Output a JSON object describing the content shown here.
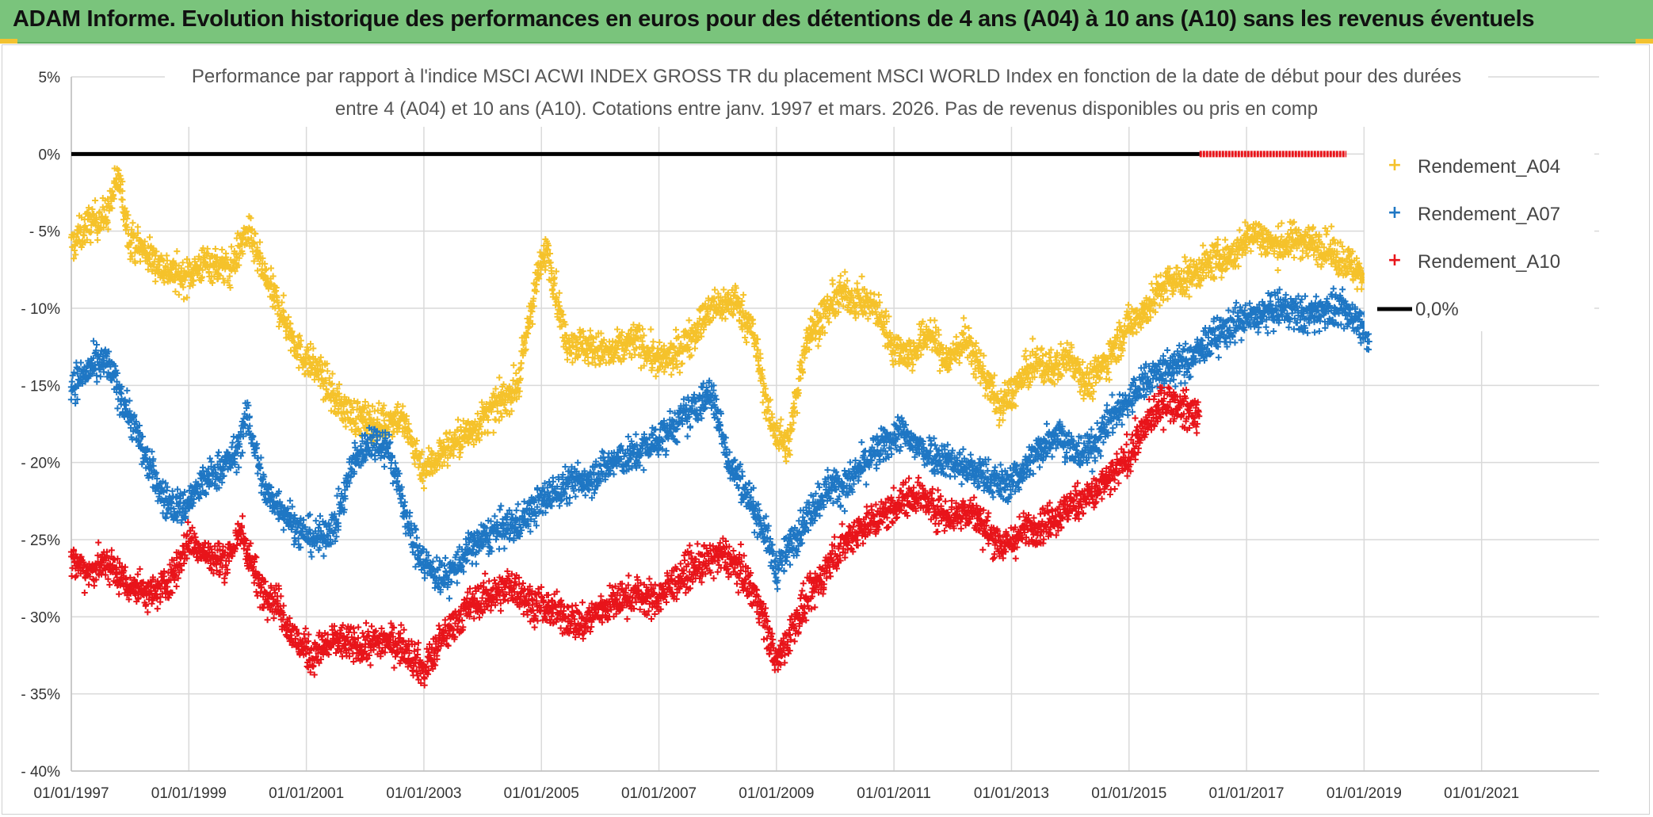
{
  "banner": {
    "title": "ADAM Informe. Evolution historique des performances en euros pour des détentions de 4 ans (A04) à 10 ans (A10) sans les revenus éventuels",
    "background": "#7ac47c"
  },
  "chart_data": {
    "type": "scatter",
    "title_line1": "Performance par rapport à l'indice MSCI ACWI INDEX GROSS TR  du placement MSCI WORLD Index en fonction de la date de début pour des durées",
    "title_line2": "entre 4 (A04) et 10 ans (A10). Cotations entre janv. 1997 et mars. 2026. Pas de revenus disponibles ou pris en comp",
    "xlabel": "",
    "ylabel": "",
    "xlim": [
      1997.0,
      2023.0
    ],
    "ylim": [
      -40,
      5
    ],
    "x_ticks": [
      1997,
      1999,
      2001,
      2003,
      2005,
      2007,
      2009,
      2011,
      2013,
      2015,
      2017,
      2019,
      2021
    ],
    "x_tick_labels": [
      "01/01/1997",
      "01/01/1999",
      "01/01/2001",
      "01/01/2003",
      "01/01/2005",
      "01/01/2007",
      "01/01/2009",
      "01/01/2011",
      "01/01/2013",
      "01/01/2015",
      "01/01/2017",
      "01/01/2019",
      "01/01/2021"
    ],
    "y_ticks": [
      5,
      0,
      -5,
      -10,
      -15,
      -20,
      -25,
      -30,
      -35,
      -40
    ],
    "y_tick_labels": [
      "5%",
      "0%",
      "- 5%",
      "- 10%",
      "- 15%",
      "- 20%",
      "- 25%",
      "- 30%",
      "- 35%",
      "- 40%"
    ],
    "grid": true,
    "legend_position": "right",
    "series": [
      {
        "name": "Rendement_A04",
        "color": "#f5c22b",
        "marker": "plus",
        "x": [
          1997.0,
          1997.3,
          1997.6,
          1997.8,
          1998.0,
          1998.3,
          1998.6,
          1998.9,
          1999.3,
          1999.7,
          2000.0,
          2000.3,
          2000.6,
          2000.9,
          2001.2,
          2001.5,
          2001.8,
          2002.2,
          2002.6,
          2003.0,
          2003.4,
          2003.8,
          2004.2,
          2004.6,
          2004.9,
          2005.1,
          2005.4,
          2005.8,
          2006.2,
          2006.6,
          2007.0,
          2007.3,
          2007.6,
          2007.9,
          2008.3,
          2008.6,
          2008.9,
          2009.2,
          2009.5,
          2009.8,
          2010.1,
          2010.4,
          2010.7,
          2011.0,
          2011.3,
          2011.6,
          2011.9,
          2012.2,
          2012.5,
          2012.8,
          2013.1,
          2013.4,
          2013.7,
          2014.0,
          2014.3,
          2014.6,
          2015.0,
          2015.3,
          2015.6,
          2016.0,
          2016.4,
          2016.8,
          2017.1,
          2017.5,
          2017.9,
          2018.3,
          2018.7,
          2019.0
        ],
        "values": [
          -6.0,
          -4.5,
          -4.0,
          -1.5,
          -5.5,
          -6.5,
          -7.5,
          -8.0,
          -7.0,
          -7.5,
          -5.0,
          -8.0,
          -10.5,
          -13.0,
          -14.0,
          -16.0,
          -17.0,
          -17.5,
          -17.0,
          -20.5,
          -19.0,
          -18.0,
          -16.5,
          -15.0,
          -8.5,
          -6.0,
          -12.0,
          -12.5,
          -13.0,
          -12.0,
          -13.5,
          -13.0,
          -11.5,
          -10.0,
          -9.5,
          -11.5,
          -17.5,
          -19.0,
          -12.0,
          -10.5,
          -9.0,
          -9.5,
          -10.0,
          -12.5,
          -13.0,
          -11.5,
          -13.5,
          -12.0,
          -14.0,
          -16.5,
          -15.0,
          -13.5,
          -14.0,
          -13.0,
          -15.0,
          -13.5,
          -11.0,
          -10.0,
          -8.5,
          -8.0,
          -7.0,
          -6.5,
          -5.0,
          -6.0,
          -5.5,
          -6.0,
          -7.0,
          -8.0
        ]
      },
      {
        "name": "Rendement_A07",
        "color": "#1f77c4",
        "marker": "plus",
        "x": [
          1997.0,
          1997.3,
          1997.6,
          1998.0,
          1998.3,
          1998.6,
          1998.9,
          1999.2,
          1999.5,
          1999.8,
          2000.0,
          2000.3,
          2000.6,
          2000.9,
          2001.2,
          2001.5,
          2001.8,
          2002.1,
          2002.4,
          2002.8,
          2003.1,
          2003.4,
          2003.8,
          2004.2,
          2004.6,
          2005.0,
          2005.4,
          2005.8,
          2006.2,
          2006.6,
          2007.0,
          2007.3,
          2007.6,
          2007.9,
          2008.2,
          2008.5,
          2008.8,
          2009.0,
          2009.3,
          2009.6,
          2009.9,
          2010.2,
          2010.5,
          2010.8,
          2011.1,
          2011.4,
          2011.7,
          2012.0,
          2012.3,
          2012.6,
          2012.9,
          2013.2,
          2013.5,
          2013.8,
          2014.1,
          2014.4,
          2014.7,
          2015.0,
          2015.3,
          2015.6,
          2016.0,
          2016.4,
          2016.8,
          2017.2,
          2017.6,
          2018.0,
          2018.4,
          2018.8,
          2019.1
        ],
        "values": [
          -15.0,
          -14.0,
          -13.5,
          -17.0,
          -20.0,
          -22.5,
          -23.0,
          -21.5,
          -20.5,
          -19.5,
          -17.0,
          -22.0,
          -23.0,
          -24.5,
          -25.0,
          -24.0,
          -20.0,
          -18.5,
          -19.0,
          -25.0,
          -27.0,
          -27.5,
          -25.5,
          -24.5,
          -24.0,
          -22.5,
          -21.5,
          -21.0,
          -20.0,
          -19.5,
          -18.5,
          -17.5,
          -16.5,
          -15.5,
          -20.0,
          -22.0,
          -24.5,
          -27.0,
          -25.0,
          -23.0,
          -21.5,
          -21.5,
          -20.0,
          -19.0,
          -18.0,
          -19.0,
          -19.5,
          -20.0,
          -20.5,
          -21.0,
          -21.5,
          -20.5,
          -19.0,
          -18.0,
          -19.5,
          -19.0,
          -17.0,
          -16.0,
          -14.5,
          -14.0,
          -13.5,
          -12.0,
          -11.0,
          -10.5,
          -10.0,
          -10.5,
          -10.0,
          -10.5,
          -11.5
        ]
      },
      {
        "name": "Rendement_A10",
        "color": "#e8141a",
        "marker": "plus",
        "x": [
          1997.0,
          1997.3,
          1997.6,
          1998.0,
          1998.4,
          1998.7,
          1999.0,
          1999.3,
          1999.6,
          1999.9,
          2000.2,
          2000.5,
          2000.8,
          2001.1,
          2001.5,
          2001.9,
          2002.3,
          2002.7,
          2003.0,
          2003.3,
          2003.6,
          2003.9,
          2004.2,
          2004.5,
          2004.8,
          2005.1,
          2005.4,
          2005.7,
          2006.0,
          2006.3,
          2006.6,
          2006.9,
          2007.2,
          2007.5,
          2007.8,
          2008.1,
          2008.4,
          2008.7,
          2009.0,
          2009.3,
          2009.6,
          2009.9,
          2010.2,
          2010.5,
          2010.8,
          2011.1,
          2011.4,
          2011.7,
          2012.0,
          2012.3,
          2012.6,
          2012.9,
          2013.2,
          2013.5,
          2013.8,
          2014.1,
          2014.4,
          2014.7,
          2015.0,
          2015.3,
          2015.6,
          2015.9,
          2016.2
        ],
        "values": [
          -26.5,
          -27.0,
          -26.5,
          -28.0,
          -28.5,
          -27.5,
          -25.0,
          -26.0,
          -26.5,
          -24.5,
          -28.0,
          -29.0,
          -31.5,
          -32.5,
          -31.5,
          -32.0,
          -31.5,
          -32.0,
          -33.5,
          -31.5,
          -30.0,
          -29.0,
          -28.5,
          -28.0,
          -29.0,
          -29.5,
          -30.0,
          -30.5,
          -29.5,
          -29.0,
          -28.5,
          -29.0,
          -28.0,
          -27.0,
          -26.5,
          -26.0,
          -27.0,
          -29.0,
          -33.0,
          -30.5,
          -28.5,
          -26.5,
          -25.0,
          -24.0,
          -23.5,
          -22.5,
          -22.0,
          -23.0,
          -23.5,
          -23.0,
          -24.5,
          -25.5,
          -24.5,
          -24.0,
          -23.5,
          -22.5,
          -22.0,
          -21.0,
          -19.5,
          -17.5,
          -16.0,
          -16.5,
          -17.0
        ]
      },
      {
        "name": "0,0%",
        "color": "#000000",
        "marker": "line",
        "x": [
          1997.0,
          2016.2
        ],
        "values": [
          0.0,
          0.0
        ]
      }
    ],
    "red_zero_band": {
      "x_start": 2016.2,
      "x_end": 2018.7,
      "value": 0.0,
      "color": "#e8141a"
    }
  }
}
